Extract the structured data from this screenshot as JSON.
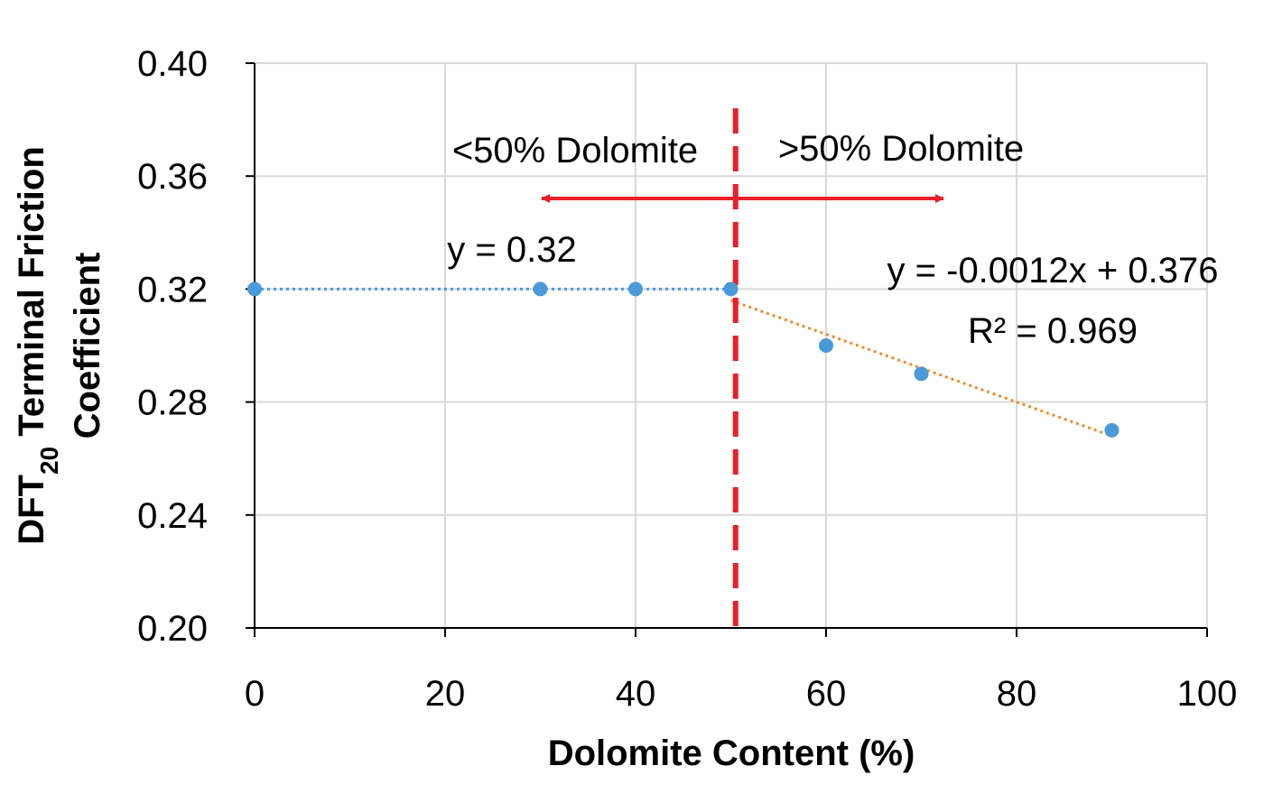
{
  "chart_data": {
    "type": "scatter",
    "xlabel": "Dolomite Content (%)",
    "ylabel": {
      "line1_prefix": "DFT",
      "line1_subscript": "20",
      "line1_suffix": " Terminal Friction",
      "line2": "Coefficient"
    },
    "xlim": [
      0,
      100
    ],
    "ylim": [
      0.2,
      0.4
    ],
    "x_ticks": [
      0,
      20,
      40,
      60,
      80,
      100
    ],
    "x_tick_labels": [
      "0",
      "20",
      "40",
      "60",
      "80",
      "100"
    ],
    "y_ticks": [
      0.2,
      0.24,
      0.28,
      0.32,
      0.36,
      0.4
    ],
    "y_tick_labels": [
      "0.20",
      "0.24",
      "0.28",
      "0.32",
      "0.36",
      "0.40"
    ],
    "grid": true,
    "series": [
      {
        "points": [
          {
            "x": 0,
            "y": 0.32
          },
          {
            "x": 30,
            "y": 0.32
          },
          {
            "x": 40,
            "y": 0.32
          },
          {
            "x": 50,
            "y": 0.32
          },
          {
            "x": 60,
            "y": 0.3
          },
          {
            "x": 70,
            "y": 0.29
          },
          {
            "x": 90,
            "y": 0.27
          }
        ]
      }
    ],
    "trendlines": [
      {
        "x_range": [
          0,
          50
        ],
        "slope": 0,
        "intercept": 0.32,
        "equation": "y = 0.32"
      },
      {
        "x_range": [
          50,
          90
        ],
        "slope": -0.0012,
        "intercept": 0.376,
        "equation": "y = -0.0012x + 0.376",
        "r2_label": "R² = 0.969"
      }
    ],
    "threshold_line": {
      "x": 50.5
    },
    "region_labels": {
      "left": "<50% Dolomite",
      "right": ">50% Dolomite"
    },
    "colors": {
      "points": "#4a9ad9",
      "trend_left": "#4a9ad9",
      "trend_right": "#ee8a2a",
      "threshold": "#e8202a",
      "arrows": "#e8202a",
      "grid": "#d9d9d9",
      "axis": "#000000"
    }
  }
}
